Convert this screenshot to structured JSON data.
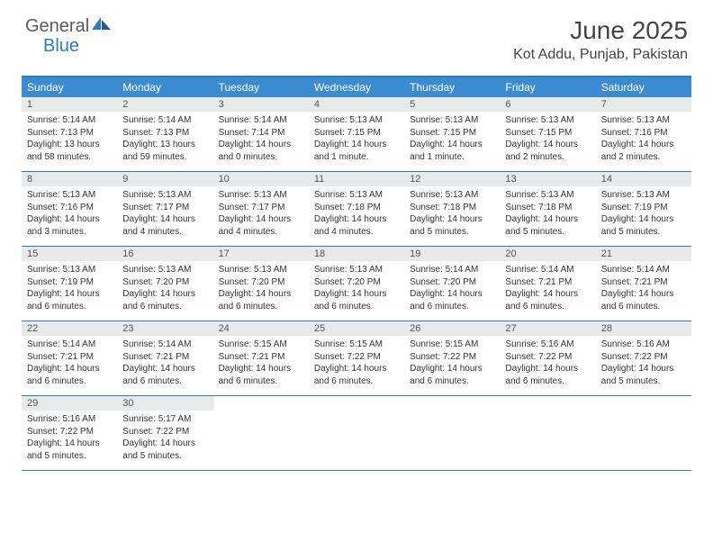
{
  "logo": {
    "text1": "General",
    "text2": "Blue"
  },
  "title": "June 2025",
  "location": "Kot Addu, Punjab, Pakistan",
  "colors": {
    "header_bg": "#3b8bd0",
    "border": "#2f7bbf",
    "daynum_bg": "#e8e9ea",
    "text": "#333333",
    "logo_gray": "#5a5a5a",
    "logo_blue": "#2f7bbf"
  },
  "typography": {
    "title_fontsize": 28,
    "location_fontsize": 16,
    "weekday_fontsize": 12,
    "daynum_fontsize": 11,
    "body_fontsize": 10
  },
  "weekdays": [
    "Sunday",
    "Monday",
    "Tuesday",
    "Wednesday",
    "Thursday",
    "Friday",
    "Saturday"
  ],
  "weeks": [
    [
      {
        "n": "1",
        "sr": "Sunrise: 5:14 AM",
        "ss": "Sunset: 7:13 PM",
        "dl": "Daylight: 13 hours and 58 minutes."
      },
      {
        "n": "2",
        "sr": "Sunrise: 5:14 AM",
        "ss": "Sunset: 7:13 PM",
        "dl": "Daylight: 13 hours and 59 minutes."
      },
      {
        "n": "3",
        "sr": "Sunrise: 5:14 AM",
        "ss": "Sunset: 7:14 PM",
        "dl": "Daylight: 14 hours and 0 minutes."
      },
      {
        "n": "4",
        "sr": "Sunrise: 5:13 AM",
        "ss": "Sunset: 7:15 PM",
        "dl": "Daylight: 14 hours and 1 minute."
      },
      {
        "n": "5",
        "sr": "Sunrise: 5:13 AM",
        "ss": "Sunset: 7:15 PM",
        "dl": "Daylight: 14 hours and 1 minute."
      },
      {
        "n": "6",
        "sr": "Sunrise: 5:13 AM",
        "ss": "Sunset: 7:15 PM",
        "dl": "Daylight: 14 hours and 2 minutes."
      },
      {
        "n": "7",
        "sr": "Sunrise: 5:13 AM",
        "ss": "Sunset: 7:16 PM",
        "dl": "Daylight: 14 hours and 2 minutes."
      }
    ],
    [
      {
        "n": "8",
        "sr": "Sunrise: 5:13 AM",
        "ss": "Sunset: 7:16 PM",
        "dl": "Daylight: 14 hours and 3 minutes."
      },
      {
        "n": "9",
        "sr": "Sunrise: 5:13 AM",
        "ss": "Sunset: 7:17 PM",
        "dl": "Daylight: 14 hours and 4 minutes."
      },
      {
        "n": "10",
        "sr": "Sunrise: 5:13 AM",
        "ss": "Sunset: 7:17 PM",
        "dl": "Daylight: 14 hours and 4 minutes."
      },
      {
        "n": "11",
        "sr": "Sunrise: 5:13 AM",
        "ss": "Sunset: 7:18 PM",
        "dl": "Daylight: 14 hours and 4 minutes."
      },
      {
        "n": "12",
        "sr": "Sunrise: 5:13 AM",
        "ss": "Sunset: 7:18 PM",
        "dl": "Daylight: 14 hours and 5 minutes."
      },
      {
        "n": "13",
        "sr": "Sunrise: 5:13 AM",
        "ss": "Sunset: 7:18 PM",
        "dl": "Daylight: 14 hours and 5 minutes."
      },
      {
        "n": "14",
        "sr": "Sunrise: 5:13 AM",
        "ss": "Sunset: 7:19 PM",
        "dl": "Daylight: 14 hours and 5 minutes."
      }
    ],
    [
      {
        "n": "15",
        "sr": "Sunrise: 5:13 AM",
        "ss": "Sunset: 7:19 PM",
        "dl": "Daylight: 14 hours and 6 minutes."
      },
      {
        "n": "16",
        "sr": "Sunrise: 5:13 AM",
        "ss": "Sunset: 7:20 PM",
        "dl": "Daylight: 14 hours and 6 minutes."
      },
      {
        "n": "17",
        "sr": "Sunrise: 5:13 AM",
        "ss": "Sunset: 7:20 PM",
        "dl": "Daylight: 14 hours and 6 minutes."
      },
      {
        "n": "18",
        "sr": "Sunrise: 5:13 AM",
        "ss": "Sunset: 7:20 PM",
        "dl": "Daylight: 14 hours and 6 minutes."
      },
      {
        "n": "19",
        "sr": "Sunrise: 5:14 AM",
        "ss": "Sunset: 7:20 PM",
        "dl": "Daylight: 14 hours and 6 minutes."
      },
      {
        "n": "20",
        "sr": "Sunrise: 5:14 AM",
        "ss": "Sunset: 7:21 PM",
        "dl": "Daylight: 14 hours and 6 minutes."
      },
      {
        "n": "21",
        "sr": "Sunrise: 5:14 AM",
        "ss": "Sunset: 7:21 PM",
        "dl": "Daylight: 14 hours and 6 minutes."
      }
    ],
    [
      {
        "n": "22",
        "sr": "Sunrise: 5:14 AM",
        "ss": "Sunset: 7:21 PM",
        "dl": "Daylight: 14 hours and 6 minutes."
      },
      {
        "n": "23",
        "sr": "Sunrise: 5:14 AM",
        "ss": "Sunset: 7:21 PM",
        "dl": "Daylight: 14 hours and 6 minutes."
      },
      {
        "n": "24",
        "sr": "Sunrise: 5:15 AM",
        "ss": "Sunset: 7:21 PM",
        "dl": "Daylight: 14 hours and 6 minutes."
      },
      {
        "n": "25",
        "sr": "Sunrise: 5:15 AM",
        "ss": "Sunset: 7:22 PM",
        "dl": "Daylight: 14 hours and 6 minutes."
      },
      {
        "n": "26",
        "sr": "Sunrise: 5:15 AM",
        "ss": "Sunset: 7:22 PM",
        "dl": "Daylight: 14 hours and 6 minutes."
      },
      {
        "n": "27",
        "sr": "Sunrise: 5:16 AM",
        "ss": "Sunset: 7:22 PM",
        "dl": "Daylight: 14 hours and 6 minutes."
      },
      {
        "n": "28",
        "sr": "Sunrise: 5:16 AM",
        "ss": "Sunset: 7:22 PM",
        "dl": "Daylight: 14 hours and 5 minutes."
      }
    ],
    [
      {
        "n": "29",
        "sr": "Sunrise: 5:16 AM",
        "ss": "Sunset: 7:22 PM",
        "dl": "Daylight: 14 hours and 5 minutes."
      },
      {
        "n": "30",
        "sr": "Sunrise: 5:17 AM",
        "ss": "Sunset: 7:22 PM",
        "dl": "Daylight: 14 hours and 5 minutes."
      },
      null,
      null,
      null,
      null,
      null
    ]
  ]
}
